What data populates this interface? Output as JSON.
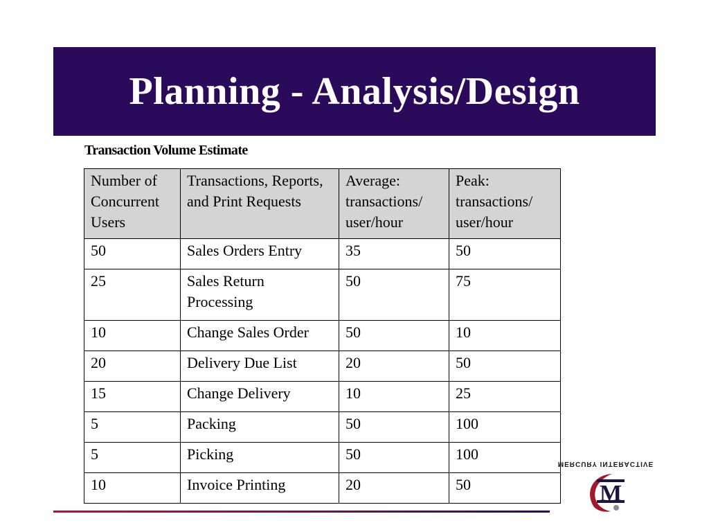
{
  "slide": {
    "title": "Planning - Analysis/Design",
    "table_caption": "Transaction Volume Estimate"
  },
  "table": {
    "headers": [
      "Number of Concurrent Users",
      "Transactions, Reports, and Print Requests",
      "Average: transactions/ user/hour",
      "Peak: transactions/ user/hour"
    ],
    "rows": [
      [
        "50",
        "Sales Orders Entry",
        "35",
        "50"
      ],
      [
        "25",
        "Sales Return Processing",
        "50",
        "75"
      ],
      [
        "10",
        "Change Sales Order",
        "50",
        "10"
      ],
      [
        "20",
        "Delivery Due List",
        "20",
        "50"
      ],
      [
        "15",
        "Change Delivery",
        "10",
        "25"
      ],
      [
        "5",
        "Packing",
        "50",
        "100"
      ],
      [
        "5",
        "Picking",
        "50",
        "100"
      ],
      [
        "10",
        "Invoice Printing",
        "20",
        "50"
      ]
    ]
  },
  "logo": {
    "text": "MERCURY INTERACTIVE",
    "letter": "M",
    "icon": "mercury-interactive-logo"
  },
  "colors": {
    "title_bar": "#2b0a5c",
    "title_text": "#ffffff",
    "header_fill": "#d4d4d4",
    "footer_line_left": "#b3122f",
    "footer_line_right": "#2b0a5c"
  }
}
